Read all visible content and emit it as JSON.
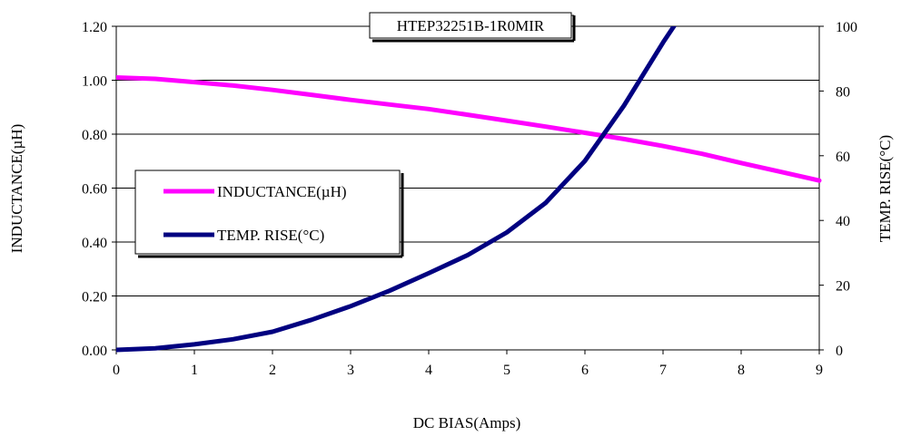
{
  "chart_data": {
    "type": "line",
    "title": "HTEP32251B-1R0MIR",
    "xlabel": "DC BIAS(Amps)",
    "ylabel": "INDUCTANCE(µH)",
    "y2label": "TEMP. RISE(°C)",
    "xlim": [
      0,
      9
    ],
    "ylim": [
      0,
      1.2
    ],
    "y2lim": [
      0,
      100
    ],
    "x_ticks": [
      "0",
      "1",
      "2",
      "3",
      "4",
      "5",
      "6",
      "7",
      "8",
      "9"
    ],
    "y_ticks": [
      "0.00",
      "0.20",
      "0.40",
      "0.60",
      "0.80",
      "1.00",
      "1.20"
    ],
    "y2_ticks": [
      "0",
      "20",
      "40",
      "60",
      "80",
      "100"
    ],
    "grid": "horizontal",
    "legend_position": "left-middle",
    "series": [
      {
        "name": "INDUCTANCE(µH)",
        "axis": "left",
        "color": "#FF00FF",
        "x": [
          0,
          0.5,
          1,
          1.5,
          2,
          2.5,
          3,
          3.5,
          4,
          4.5,
          5,
          5.5,
          6,
          6.5,
          7,
          7.5,
          8,
          8.5,
          9
        ],
        "y": [
          1.01,
          1.005,
          0.993,
          0.98,
          0.964,
          0.946,
          0.927,
          0.91,
          0.893,
          0.872,
          0.85,
          0.828,
          0.805,
          0.782,
          0.756,
          0.727,
          0.693,
          0.661,
          0.628
        ]
      },
      {
        "name": "TEMP. RISE(°C)",
        "axis": "right",
        "color": "#000080",
        "x": [
          0,
          0.5,
          1,
          1.5,
          2,
          2.5,
          3,
          3.5,
          4,
          4.5,
          5,
          5.5,
          6,
          6.5,
          7,
          7.25
        ],
        "y": [
          0,
          0.5,
          1.7,
          3.3,
          5.6,
          9.3,
          13.5,
          18.3,
          23.7,
          29.3,
          36.3,
          45.5,
          58.4,
          75.5,
          95.0,
          104
        ]
      }
    ]
  }
}
